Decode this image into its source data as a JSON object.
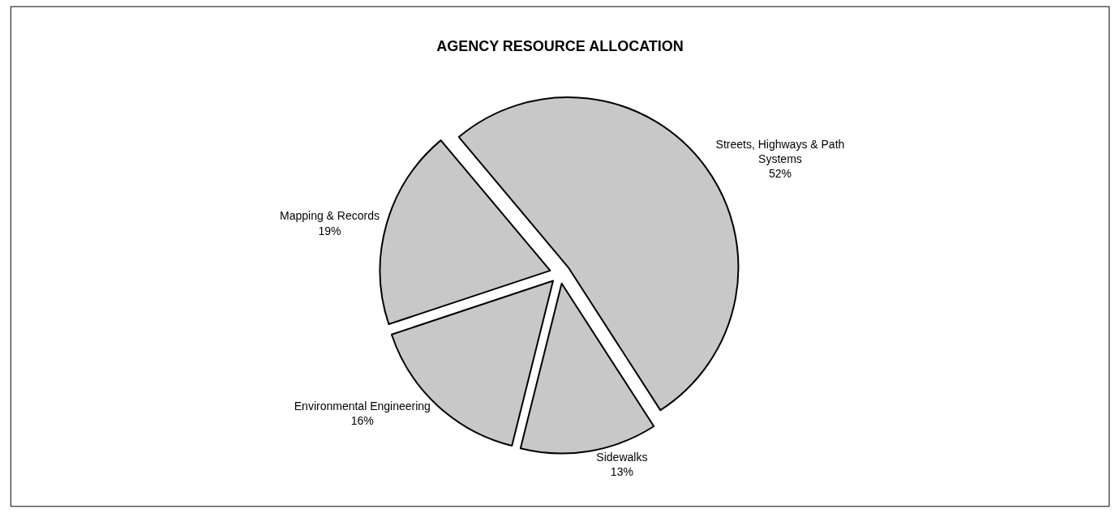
{
  "chart_data": {
    "type": "pie",
    "title": "AGENCY RESOURCE ALLOCATION",
    "categories": [
      "Streets, Highways & Path Systems",
      "Sidewalks",
      "Environmental Engineering",
      "Mapping & Records"
    ],
    "values": [
      52,
      13,
      16,
      19
    ],
    "value_labels": [
      "52%",
      "13%",
      "16%",
      "19%"
    ],
    "colors": [
      "#c8c8c8",
      "#c8c8c8",
      "#c8c8c8",
      "#c8c8c8"
    ],
    "legend": false
  }
}
